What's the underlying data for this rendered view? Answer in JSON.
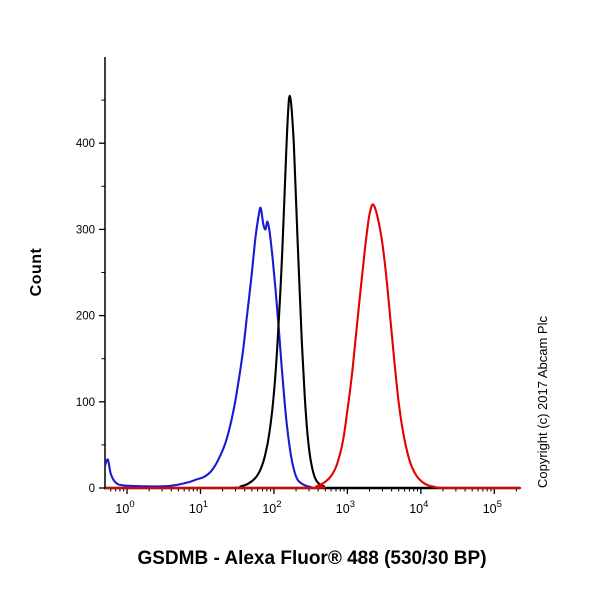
{
  "title": "GSDMB - Alexa Fluor® 488 (530/30 BP)",
  "ylabel": "Count",
  "copyright": "Copyright (c) 2017 Abcam Plc",
  "colors": {
    "axis": "#000000",
    "background": "#ffffff",
    "blue_curve": "#1a1ad1",
    "black_curve": "#000000",
    "red_curve": "#e50000"
  },
  "chart_data": {
    "type": "line",
    "subtype": "flow-cytometry-histogram",
    "title": "GSDMB - Alexa Fluor® 488 (530/30 BP)",
    "xlabel": "GSDMB - Alexa Fluor® 488 (530/30 BP)",
    "ylabel": "Count",
    "x_scale": "log10",
    "xlim_log": [
      -0.3,
      5.35
    ],
    "ylim": [
      0,
      500
    ],
    "yticks": [
      0,
      100,
      200,
      300,
      400
    ],
    "ytick_minor_step": 50,
    "xticks_exponents": [
      0,
      1,
      2,
      3,
      4,
      5
    ],
    "grid": false,
    "legend": "none",
    "series": [
      {
        "name": "blue-curve",
        "color": "#1a1ad1",
        "peak_x_approx": 65,
        "peak_count_approx": 325,
        "points": [
          [
            -0.3,
            26
          ],
          [
            -0.26,
            33
          ],
          [
            -0.22,
            16
          ],
          [
            -0.15,
            6
          ],
          [
            -0.05,
            3
          ],
          [
            0.2,
            2
          ],
          [
            0.5,
            2
          ],
          [
            0.7,
            4
          ],
          [
            0.85,
            7
          ],
          [
            0.95,
            10
          ],
          [
            1.05,
            13
          ],
          [
            1.15,
            20
          ],
          [
            1.25,
            34
          ],
          [
            1.35,
            55
          ],
          [
            1.45,
            90
          ],
          [
            1.52,
            125
          ],
          [
            1.58,
            160
          ],
          [
            1.64,
            205
          ],
          [
            1.7,
            250
          ],
          [
            1.75,
            292
          ],
          [
            1.79,
            315
          ],
          [
            1.82,
            325
          ],
          [
            1.855,
            306
          ],
          [
            1.885,
            300
          ],
          [
            1.91,
            309
          ],
          [
            1.94,
            298
          ],
          [
            1.98,
            268
          ],
          [
            2.02,
            232
          ],
          [
            2.07,
            180
          ],
          [
            2.12,
            125
          ],
          [
            2.17,
            78
          ],
          [
            2.22,
            44
          ],
          [
            2.27,
            22
          ],
          [
            2.32,
            10
          ],
          [
            2.4,
            4
          ],
          [
            2.5,
            1
          ],
          [
            2.7,
            0
          ],
          [
            5.35,
            0
          ]
        ]
      },
      {
        "name": "black-curve",
        "color": "#000000",
        "peak_x_approx": 160,
        "peak_count_approx": 455,
        "points": [
          [
            -0.3,
            0
          ],
          [
            1.4,
            0
          ],
          [
            1.55,
            2
          ],
          [
            1.65,
            5
          ],
          [
            1.75,
            12
          ],
          [
            1.82,
            22
          ],
          [
            1.88,
            38
          ],
          [
            1.94,
            65
          ],
          [
            2.0,
            110
          ],
          [
            2.05,
            170
          ],
          [
            2.1,
            250
          ],
          [
            2.14,
            330
          ],
          [
            2.17,
            395
          ],
          [
            2.195,
            440
          ],
          [
            2.215,
            455
          ],
          [
            2.24,
            440
          ],
          [
            2.27,
            400
          ],
          [
            2.3,
            335
          ],
          [
            2.34,
            250
          ],
          [
            2.38,
            170
          ],
          [
            2.42,
            105
          ],
          [
            2.46,
            60
          ],
          [
            2.5,
            32
          ],
          [
            2.55,
            14
          ],
          [
            2.6,
            6
          ],
          [
            2.68,
            2
          ],
          [
            2.8,
            0
          ],
          [
            5.35,
            0
          ]
        ]
      },
      {
        "name": "red-curve",
        "color": "#e50000",
        "peak_x_approx": 2200,
        "peak_count_approx": 328,
        "points": [
          [
            -0.3,
            0
          ],
          [
            2.45,
            0
          ],
          [
            2.58,
            2
          ],
          [
            2.68,
            6
          ],
          [
            2.78,
            14
          ],
          [
            2.86,
            28
          ],
          [
            2.94,
            55
          ],
          [
            3.0,
            90
          ],
          [
            3.06,
            130
          ],
          [
            3.12,
            180
          ],
          [
            3.18,
            230
          ],
          [
            3.24,
            278
          ],
          [
            3.29,
            312
          ],
          [
            3.33,
            327
          ],
          [
            3.36,
            328
          ],
          [
            3.4,
            318
          ],
          [
            3.45,
            298
          ],
          [
            3.5,
            268
          ],
          [
            3.55,
            228
          ],
          [
            3.6,
            182
          ],
          [
            3.65,
            138
          ],
          [
            3.7,
            98
          ],
          [
            3.76,
            64
          ],
          [
            3.82,
            40
          ],
          [
            3.88,
            24
          ],
          [
            3.95,
            13
          ],
          [
            4.02,
            7
          ],
          [
            4.1,
            3
          ],
          [
            4.2,
            1
          ],
          [
            4.35,
            0
          ],
          [
            5.35,
            0
          ]
        ]
      }
    ]
  }
}
